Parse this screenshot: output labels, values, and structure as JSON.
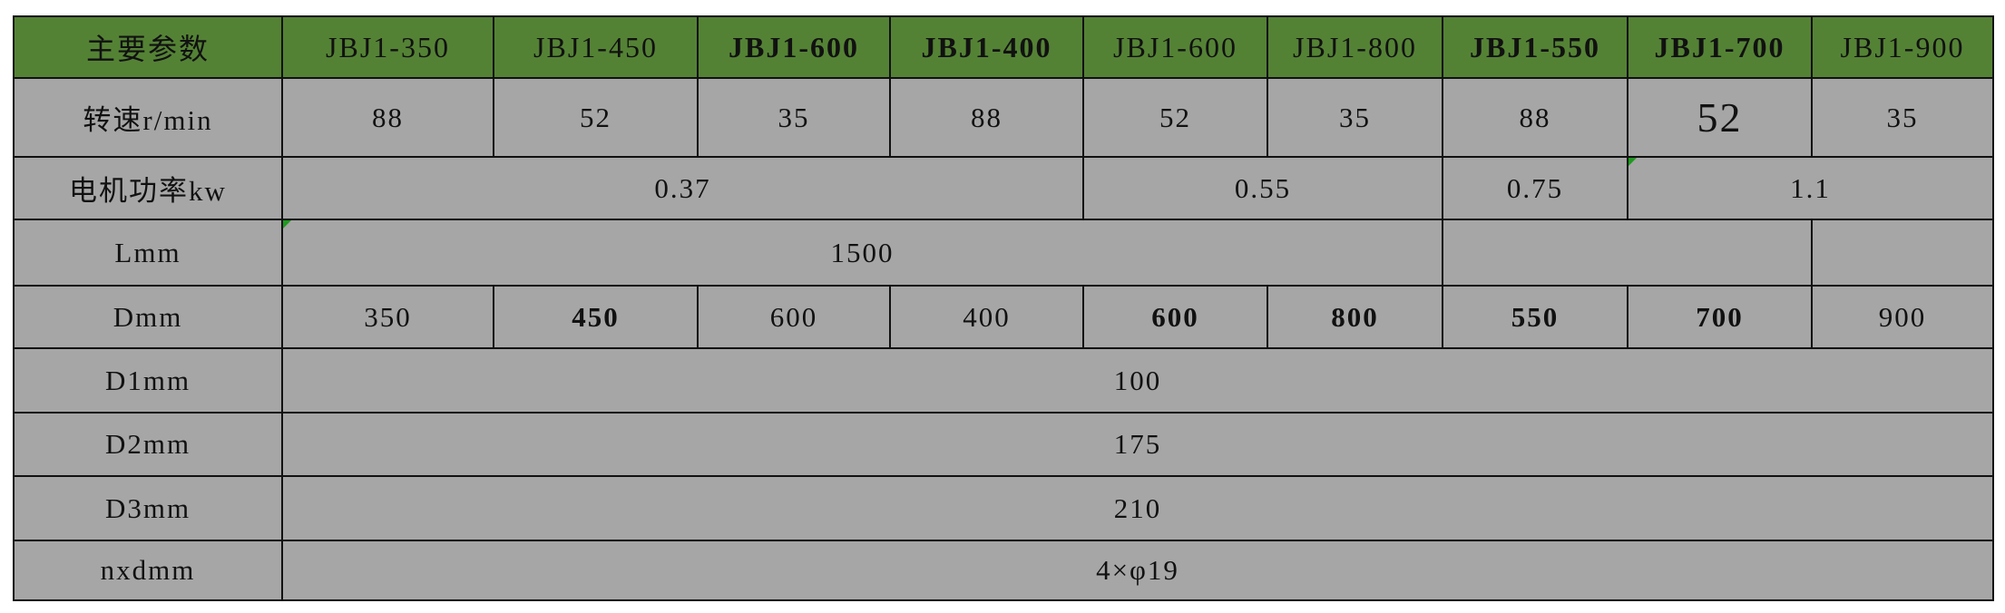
{
  "header": {
    "label": "主要参数",
    "models": [
      "JBJ1-350",
      "JBJ1-450",
      "JBJ1-600",
      "JBJ1-400",
      "JBJ1-600",
      "JBJ1-800",
      "JBJ1-550",
      "JBJ1-700",
      "JBJ1-900"
    ]
  },
  "rows": {
    "speed": {
      "label": "转速r/min",
      "values": [
        "88",
        "52",
        "35",
        "88",
        "52",
        "35",
        "88",
        "52",
        "35"
      ]
    },
    "power": {
      "label": "电机功率kw",
      "values": [
        "0.37",
        "0.55",
        "0.75",
        "1.1"
      ]
    },
    "L": {
      "label": "Lmm",
      "values": [
        "1500",
        "",
        ""
      ]
    },
    "D": {
      "label": "Dmm",
      "values": [
        "350",
        "450",
        "600",
        "400",
        "600",
        "800",
        "550",
        "700",
        "900"
      ]
    },
    "D1": {
      "label": "D1mm",
      "value": "100"
    },
    "D2": {
      "label": "D2mm",
      "value": "175"
    },
    "D3": {
      "label": "D3mm",
      "value": "210"
    },
    "nxd": {
      "label": "nxdmm",
      "value": "4×φ19"
    }
  },
  "colors": {
    "header_bg": "#548235",
    "cell_bg": "#a6a6a6",
    "border": "#111111"
  }
}
